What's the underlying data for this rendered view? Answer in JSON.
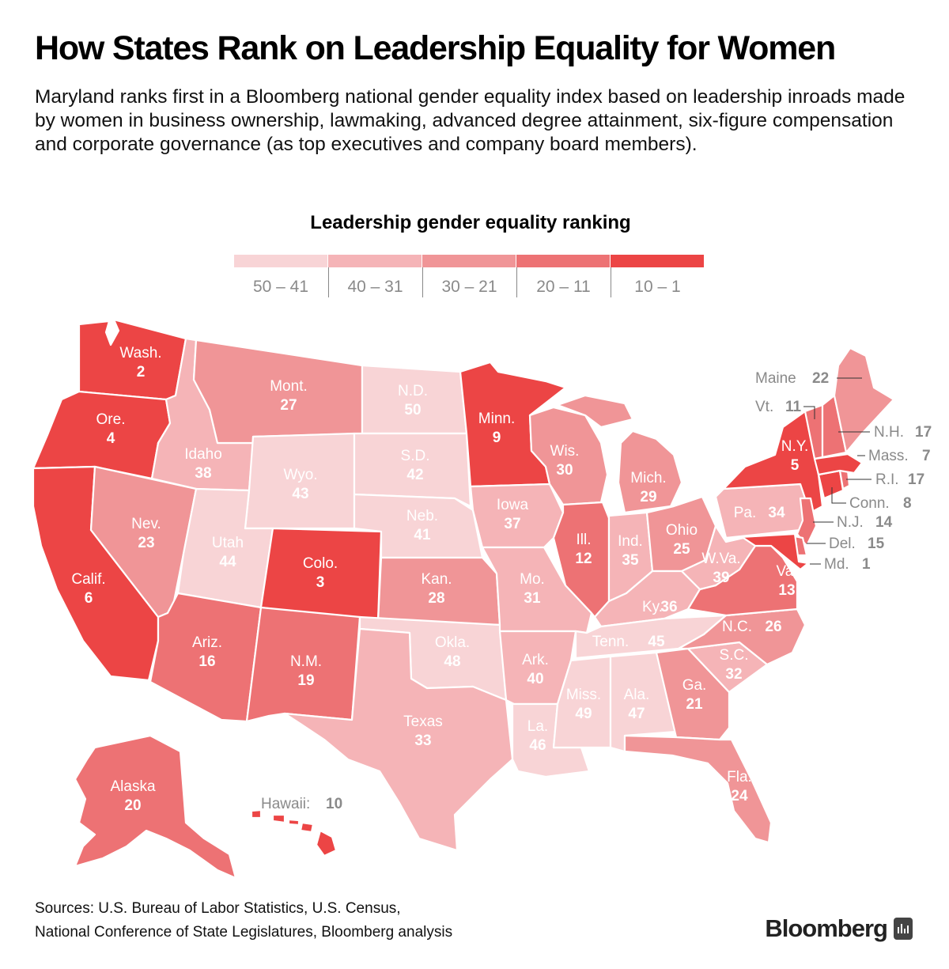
{
  "header": {
    "title": "How States Rank on Leadership Equality for Women",
    "subtitle": "Maryland ranks first in a Bloomberg national gender equality index based on leadership inroads made by women in business ownership, lawmaking, advanced degree attainment, six-figure compensation and corporate governance (as top executives and company board members)."
  },
  "legend": {
    "title": "Leadership gender equality ranking",
    "bins": [
      {
        "label": "50 – 41",
        "color": "#f8d4d6"
      },
      {
        "label": "40 – 31",
        "color": "#f5b4b7"
      },
      {
        "label": "30 – 21",
        "color": "#f09597"
      },
      {
        "label": "20 – 11",
        "color": "#ed7274"
      },
      {
        "label": "10 – 1",
        "color": "#ec4545"
      }
    ]
  },
  "states": {
    "wa": {
      "name": "Wash.",
      "rank": "2"
    },
    "or": {
      "name": "Ore.",
      "rank": "4"
    },
    "ca": {
      "name": "Calif.",
      "rank": "6"
    },
    "id": {
      "name": "Idaho",
      "rank": "38"
    },
    "nv": {
      "name": "Nev.",
      "rank": "23"
    },
    "mt": {
      "name": "Mont.",
      "rank": "27"
    },
    "wy": {
      "name": "Wyo.",
      "rank": "43"
    },
    "ut": {
      "name": "Utah",
      "rank": "44"
    },
    "co": {
      "name": "Colo.",
      "rank": "3"
    },
    "az": {
      "name": "Ariz.",
      "rank": "16"
    },
    "nm": {
      "name": "N.M.",
      "rank": "19"
    },
    "nd": {
      "name": "N.D.",
      "rank": "50"
    },
    "sd": {
      "name": "S.D.",
      "rank": "42"
    },
    "ne": {
      "name": "Neb.",
      "rank": "41"
    },
    "ks": {
      "name": "Kan.",
      "rank": "28"
    },
    "ok": {
      "name": "Okla.",
      "rank": "48"
    },
    "tx": {
      "name": "Texas",
      "rank": "33"
    },
    "mn": {
      "name": "Minn.",
      "rank": "9"
    },
    "ia": {
      "name": "Iowa",
      "rank": "37"
    },
    "mo": {
      "name": "Mo.",
      "rank": "31"
    },
    "ar": {
      "name": "Ark.",
      "rank": "40"
    },
    "la": {
      "name": "La.",
      "rank": "46"
    },
    "wi": {
      "name": "Wis.",
      "rank": "30"
    },
    "il": {
      "name": "Ill.",
      "rank": "12"
    },
    "mi": {
      "name": "Mich.",
      "rank": "29"
    },
    "in": {
      "name": "Ind.",
      "rank": "35"
    },
    "oh": {
      "name": "Ohio",
      "rank": "25"
    },
    "ky": {
      "name": "Ky.",
      "rank": "36"
    },
    "tn": {
      "name": "Tenn.",
      "rank": "45"
    },
    "ms": {
      "name": "Miss.",
      "rank": "49"
    },
    "al": {
      "name": "Ala.",
      "rank": "47"
    },
    "ga": {
      "name": "Ga.",
      "rank": "21"
    },
    "fl": {
      "name": "Fla.",
      "rank": "24"
    },
    "sc": {
      "name": "S.C.",
      "rank": "32"
    },
    "nc": {
      "name": "N.C.",
      "rank": "26"
    },
    "va": {
      "name": "Va.",
      "rank": "13"
    },
    "wv": {
      "name": "W.Va.",
      "rank": "39"
    },
    "pa": {
      "name": "Pa.",
      "rank": "34"
    },
    "ny": {
      "name": "N.Y.",
      "rank": "5"
    },
    "me": {
      "name": "Maine",
      "rank": "22"
    },
    "vt": {
      "name": "Vt.",
      "rank": "11"
    },
    "nh": {
      "name": "N.H.",
      "rank": "17"
    },
    "ma": {
      "name": "Mass.",
      "rank": "7"
    },
    "ri": {
      "name": "R.I.",
      "rank": "17"
    },
    "ct": {
      "name": "Conn.",
      "rank": "8"
    },
    "nj": {
      "name": "N.J.",
      "rank": "14"
    },
    "de": {
      "name": "Del.",
      "rank": "15"
    },
    "md": {
      "name": "Md.",
      "rank": "1"
    },
    "ak": {
      "name": "Alaska",
      "rank": "20"
    },
    "hi": {
      "name": "Hawaii:",
      "rank": "10"
    }
  },
  "footer": {
    "sources_line1": "Sources: U.S. Bureau of Labor Statistics, U.S. Census,",
    "sources_line2": "National Conference of State Legislatures, Bloomberg analysis",
    "brand": "Bloomberg"
  }
}
